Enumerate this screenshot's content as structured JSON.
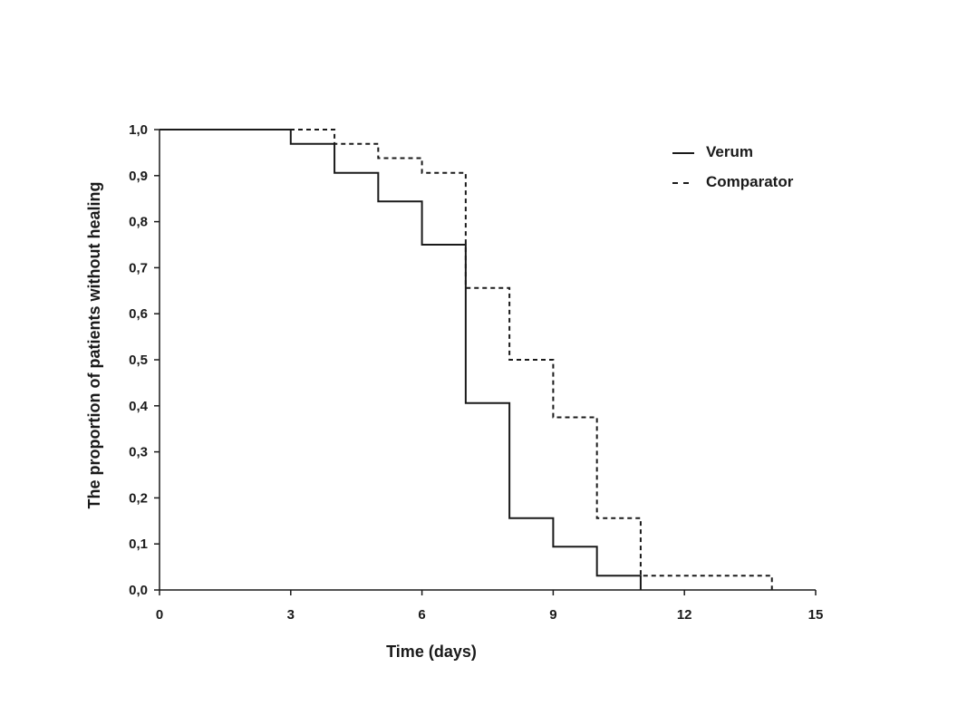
{
  "chart_data": {
    "type": "line",
    "step": true,
    "xlabel": "Time (days)",
    "ylabel": "The proportion of patients without healing",
    "xlim": [
      0,
      15
    ],
    "ylim": [
      0,
      1.0
    ],
    "xticks": [
      0,
      3,
      6,
      9,
      12,
      15
    ],
    "xtick_labels": [
      "0",
      "3",
      "6",
      "9",
      "12",
      "15"
    ],
    "yticks": [
      0,
      0.1,
      0.2,
      0.3,
      0.4,
      0.5,
      0.6,
      0.7,
      0.8,
      0.9,
      1.0
    ],
    "ytick_labels": [
      "0,0",
      "0,1",
      "0,2",
      "0,3",
      "0,4",
      "0,5",
      "0,6",
      "0,7",
      "0,8",
      "0,9",
      "1,0"
    ],
    "grid": false,
    "legend_position": "top-right",
    "series": [
      {
        "name": "Verum",
        "style": "solid",
        "color": "#1a1a1a",
        "x": [
          0,
          3,
          4,
          5,
          6,
          7,
          8,
          9,
          10,
          11
        ],
        "y": [
          1.0,
          0.969,
          0.906,
          0.844,
          0.75,
          0.406,
          0.156,
          0.094,
          0.031,
          0.0
        ]
      },
      {
        "name": "Comparator",
        "style": "dashed",
        "color": "#1a1a1a",
        "x": [
          0,
          4,
          5,
          6,
          7,
          8,
          9,
          10,
          11,
          14
        ],
        "y": [
          1.0,
          0.969,
          0.938,
          0.906,
          0.656,
          0.5,
          0.375,
          0.156,
          0.031,
          0.0
        ]
      }
    ]
  }
}
